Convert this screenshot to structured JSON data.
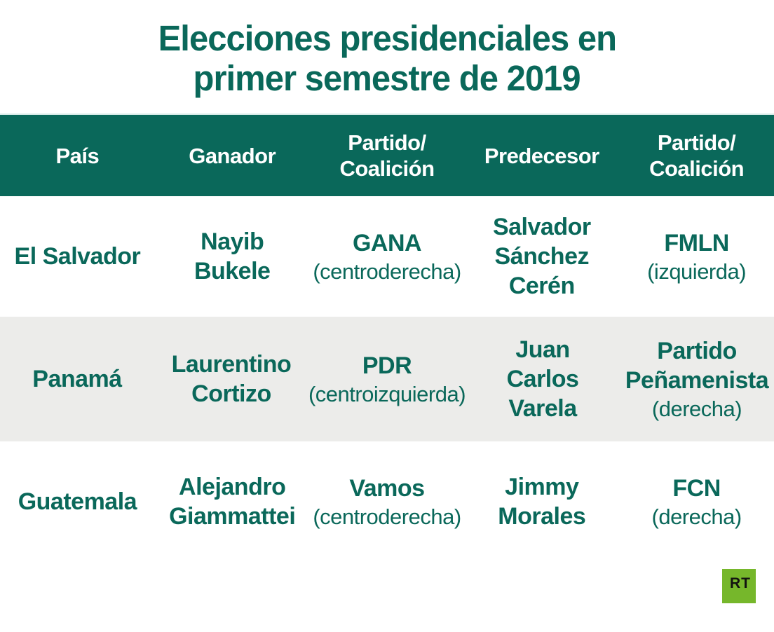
{
  "title": {
    "full": "Elecciones presidenciales en primer semestre de 2019",
    "lines": [
      "Elecciones presidenciales en",
      "primer semestre de 2019"
    ]
  },
  "colors": {
    "teal": "#0a685a",
    "alt_row_gray": "#ececea",
    "header_text": "#ffffff",
    "rt_green": "#76b72b",
    "rt_text": "#121210"
  },
  "table": {
    "columns": [
      "País",
      "Ganador",
      "Partido/\nCoalición",
      "Predecesor",
      "Partido/\nCoalición"
    ],
    "rows": [
      {
        "country": "El Salvador",
        "winner": "Nayib\nBukele",
        "winner_party": "GANA",
        "winner_party_orientation": "(centroderecha)",
        "predecessor": "Salvador\nSánchez\nCerén",
        "predecessor_party": "FMLN",
        "predecessor_party_orientation": "(izquierda)"
      },
      {
        "country": "Panamá",
        "winner": "Laurentino\nCortizo",
        "winner_party": "PDR",
        "winner_party_orientation": "(centroizquierda)",
        "predecessor": "Juan\nCarlos\nVarela",
        "predecessor_party": "Partido\nPeñamenista",
        "predecessor_party_orientation": "(derecha)"
      },
      {
        "country": "Guatemala",
        "winner": "Alejandro\nGiammattei",
        "winner_party": "Vamos",
        "winner_party_orientation": "(centroderecha)",
        "predecessor": "Jimmy\nMorales",
        "predecessor_party": "FCN",
        "predecessor_party_orientation": "(derecha)"
      }
    ]
  },
  "logo": {
    "text": "RT"
  },
  "chart_data": {
    "type": "table",
    "title": "Elecciones presidenciales en primer semestre de 2019",
    "columns": [
      "País",
      "Ganador",
      "Partido/Coalición",
      "Predecesor",
      "Partido/Coalición"
    ],
    "rows": [
      [
        "El Salvador",
        "Nayib Bukele",
        "GANA (centroderecha)",
        "Salvador Sánchez Cerén",
        "FMLN (izquierda)"
      ],
      [
        "Panamá",
        "Laurentino Cortizo",
        "PDR (centroizquierda)",
        "Juan Carlos Varela",
        "Partido Peñamenista (derecha)"
      ],
      [
        "Guatemala",
        "Alejandro Giammattei",
        "Vamos (centroderecha)",
        "Jimmy Morales",
        "FCN (derecha)"
      ]
    ]
  }
}
